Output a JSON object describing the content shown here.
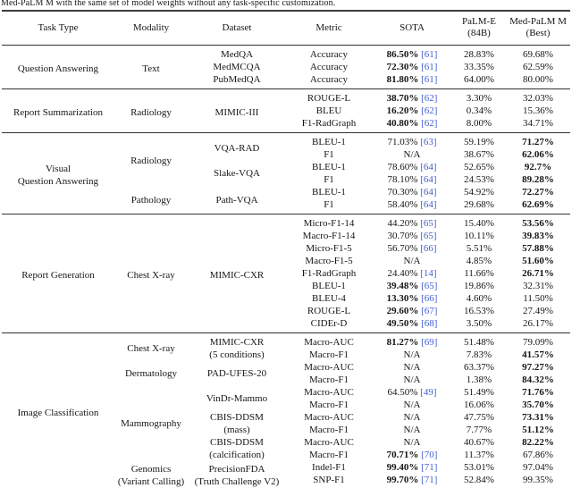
{
  "caption": "Med-PaLM M with the same set of model weights without any task-specific customization.",
  "citation_color": "#4560cf",
  "table": {
    "columns": [
      "Task Type",
      "Modality",
      "Dataset",
      "Metric",
      "SOTA",
      "PaLM-E\n(84B)",
      "Med-PaLM M\n(Best)"
    ],
    "na_label": "N/A",
    "sections": [
      {
        "task": {
          "lines": [
            "Question Answering"
          ]
        },
        "rows": [
          {
            "modality": {
              "lines": [
                "Text"
              ],
              "span": 3
            },
            "dataset": {
              "lines": [
                "MedQA"
              ],
              "span": 1
            },
            "metric": "Accuracy",
            "sota": {
              "value": "86.50%",
              "cite": "[61]",
              "bold": true
            },
            "palm_e": {
              "value": "28.83%"
            },
            "med_palm_m": {
              "value": "69.68%",
              "bold": false
            }
          },
          {
            "dataset": {
              "lines": [
                "MedMCQA"
              ],
              "span": 1
            },
            "metric": "Accuracy",
            "sota": {
              "value": "72.30%",
              "cite": "[61]",
              "bold": true
            },
            "palm_e": {
              "value": "33.35%"
            },
            "med_palm_m": {
              "value": "62.59%",
              "bold": false
            }
          },
          {
            "dataset": {
              "lines": [
                "PubMedQA"
              ],
              "span": 1
            },
            "metric": "Accuracy",
            "sota": {
              "value": "81.80%",
              "cite": "[61]",
              "bold": true
            },
            "palm_e": {
              "value": "64.00%"
            },
            "med_palm_m": {
              "value": "80.00%",
              "bold": false
            }
          }
        ]
      },
      {
        "task": {
          "lines": [
            "Report Summarization"
          ]
        },
        "rows": [
          {
            "modality": {
              "lines": [
                "Radiology"
              ],
              "span": 3
            },
            "dataset": {
              "lines": [
                "MIMIC-III"
              ],
              "span": 3
            },
            "metric": "ROUGE-L",
            "sota": {
              "value": "38.70%",
              "cite": "[62]",
              "bold": true
            },
            "palm_e": {
              "value": "3.30%"
            },
            "med_palm_m": {
              "value": "32.03%",
              "bold": false
            }
          },
          {
            "metric": "BLEU",
            "sota": {
              "value": "16.20%",
              "cite": "[62]",
              "bold": true
            },
            "palm_e": {
              "value": "0.34%"
            },
            "med_palm_m": {
              "value": "15.36%",
              "bold": false
            }
          },
          {
            "metric": "F1-RadGraph",
            "sota": {
              "value": "40.80%",
              "cite": "[62]",
              "bold": true
            },
            "palm_e": {
              "value": "8.00%"
            },
            "med_palm_m": {
              "value": "34.71%",
              "bold": false
            }
          }
        ]
      },
      {
        "task": {
          "lines": [
            "Visual",
            "Question Answering"
          ]
        },
        "rows": [
          {
            "modality": {
              "lines": [
                "Radiology"
              ],
              "span": 4
            },
            "dataset": {
              "lines": [
                "VQA-RAD"
              ],
              "span": 2
            },
            "metric": "BLEU-1",
            "sota": {
              "value": "71.03%",
              "cite": "[63]",
              "bold": false
            },
            "palm_e": {
              "value": "59.19%"
            },
            "med_palm_m": {
              "value": "71.27%",
              "bold": true
            }
          },
          {
            "metric": "F1",
            "sota": {
              "value": "N/A"
            },
            "palm_e": {
              "value": "38.67%"
            },
            "med_palm_m": {
              "value": "62.06%",
              "bold": true
            }
          },
          {
            "dataset": {
              "lines": [
                "Slake-VQA"
              ],
              "span": 2
            },
            "metric": "BLEU-1",
            "sota": {
              "value": "78.60%",
              "cite": "[64]",
              "bold": false
            },
            "palm_e": {
              "value": "52.65%"
            },
            "med_palm_m": {
              "value": "92.7%",
              "bold": true
            }
          },
          {
            "metric": "F1",
            "sota": {
              "value": "78.10%",
              "cite": "[64]",
              "bold": false
            },
            "palm_e": {
              "value": "24.53%"
            },
            "med_palm_m": {
              "value": "89.28%",
              "bold": true
            }
          },
          {
            "modality": {
              "lines": [
                "Pathology"
              ],
              "span": 2
            },
            "dataset": {
              "lines": [
                "Path-VQA"
              ],
              "span": 2
            },
            "metric": "BLEU-1",
            "sota": {
              "value": "70.30%",
              "cite": "[64]",
              "bold": false
            },
            "palm_e": {
              "value": "54.92%"
            },
            "med_palm_m": {
              "value": "72.27%",
              "bold": true
            }
          },
          {
            "metric": "F1",
            "sota": {
              "value": "58.40%",
              "cite": "[64]",
              "bold": false
            },
            "palm_e": {
              "value": "29.68%"
            },
            "med_palm_m": {
              "value": "62.69%",
              "bold": true
            }
          }
        ]
      },
      {
        "task": {
          "lines": [
            "Report Generation"
          ]
        },
        "rows": [
          {
            "modality": {
              "lines": [
                "Chest X-ray"
              ],
              "span": 9
            },
            "dataset": {
              "lines": [
                "MIMIC-CXR"
              ],
              "span": 9
            },
            "metric": "Micro-F1-14",
            "sota": {
              "value": "44.20%",
              "cite": "[65]",
              "bold": false
            },
            "palm_e": {
              "value": "15.40%"
            },
            "med_palm_m": {
              "value": "53.56%",
              "bold": true
            }
          },
          {
            "metric": "Macro-F1-14",
            "sota": {
              "value": "30.70%",
              "cite": "[65]",
              "bold": false
            },
            "palm_e": {
              "value": "10.11%"
            },
            "med_palm_m": {
              "value": "39.83%",
              "bold": true
            }
          },
          {
            "metric": "Micro-F1-5",
            "sota": {
              "value": "56.70%",
              "cite": "[66]",
              "bold": false
            },
            "palm_e": {
              "value": "5.51%"
            },
            "med_palm_m": {
              "value": "57.88%",
              "bold": true
            }
          },
          {
            "metric": "Macro-F1-5",
            "sota": {
              "value": "N/A"
            },
            "palm_e": {
              "value": "4.85%"
            },
            "med_palm_m": {
              "value": "51.60%",
              "bold": true
            }
          },
          {
            "metric": "F1-RadGraph",
            "sota": {
              "value": "24.40%",
              "cite": "[14]",
              "bold": false
            },
            "palm_e": {
              "value": "11.66%"
            },
            "med_palm_m": {
              "value": "26.71%",
              "bold": true
            }
          },
          {
            "metric": "BLEU-1",
            "sota": {
              "value": "39.48%",
              "cite": "[65]",
              "bold": true
            },
            "palm_e": {
              "value": "19.86%"
            },
            "med_palm_m": {
              "value": "32.31%",
              "bold": false
            }
          },
          {
            "metric": "BLEU-4",
            "sota": {
              "value": "13.30%",
              "cite": "[66]",
              "bold": true
            },
            "palm_e": {
              "value": "4.60%"
            },
            "med_palm_m": {
              "value": "11.50%",
              "bold": false
            }
          },
          {
            "metric": "ROUGE-L",
            "sota": {
              "value": "29.60%",
              "cite": "[67]",
              "bold": true
            },
            "palm_e": {
              "value": "16.53%"
            },
            "med_palm_m": {
              "value": "27.49%",
              "bold": false
            }
          },
          {
            "metric": "CIDEr-D",
            "sota": {
              "value": "49.50%",
              "cite": "[68]",
              "bold": true
            },
            "palm_e": {
              "value": "3.50%"
            },
            "med_palm_m": {
              "value": "26.17%",
              "bold": false
            }
          }
        ]
      },
      {
        "task": {
          "lines": [
            "Image Classification"
          ]
        },
        "rows": [
          {
            "modality": {
              "lines": [
                "Chest X-ray"
              ],
              "span": 2
            },
            "dataset": {
              "lines": [
                "MIMIC-CXR",
                "(5 conditions)"
              ],
              "span": 2
            },
            "metric": "Macro-AUC",
            "sota": {
              "value": "81.27%",
              "cite": "[69]",
              "bold": true
            },
            "palm_e": {
              "value": "51.48%"
            },
            "med_palm_m": {
              "value": "79.09%",
              "bold": false
            }
          },
          {
            "metric": "Macro-F1",
            "sota": {
              "value": "N/A"
            },
            "palm_e": {
              "value": "7.83%"
            },
            "med_palm_m": {
              "value": "41.57%",
              "bold": true
            }
          },
          {
            "modality": {
              "lines": [
                "Dermatology"
              ],
              "span": 2
            },
            "dataset": {
              "lines": [
                "PAD-UFES-20"
              ],
              "span": 2
            },
            "metric": "Macro-AUC",
            "sota": {
              "value": "N/A"
            },
            "palm_e": {
              "value": "63.37%"
            },
            "med_palm_m": {
              "value": "97.27%",
              "bold": true
            }
          },
          {
            "metric": "Macro-F1",
            "sota": {
              "value": "N/A"
            },
            "palm_e": {
              "value": "1.38%"
            },
            "med_palm_m": {
              "value": "84.32%",
              "bold": true
            }
          },
          {
            "modality": {
              "lines": [
                "Mammography"
              ],
              "span": 6
            },
            "dataset": {
              "lines": [
                "VinDr-Mammo"
              ],
              "span": 2
            },
            "metric": "Macro-AUC",
            "sota": {
              "value": "64.50%",
              "cite": "[49]",
              "bold": false
            },
            "palm_e": {
              "value": "51.49%"
            },
            "med_palm_m": {
              "value": "71.76%",
              "bold": true
            }
          },
          {
            "metric": "Macro-F1",
            "sota": {
              "value": "N/A"
            },
            "palm_e": {
              "value": "16.06%"
            },
            "med_palm_m": {
              "value": "35.70%",
              "bold": true
            }
          },
          {
            "dataset": {
              "lines": [
                "CBIS-DDSM",
                "(mass)"
              ],
              "span": 2
            },
            "metric": "Macro-AUC",
            "sota": {
              "value": "N/A"
            },
            "palm_e": {
              "value": "47.75%"
            },
            "med_palm_m": {
              "value": "73.31%",
              "bold": true
            }
          },
          {
            "metric": "Macro-F1",
            "sota": {
              "value": "N/A"
            },
            "palm_e": {
              "value": "7.77%"
            },
            "med_palm_m": {
              "value": "51.12%",
              "bold": true
            }
          },
          {
            "dataset": {
              "lines": [
                "CBIS-DDSM",
                "(calcification)"
              ],
              "span": 2
            },
            "metric": "Macro-AUC",
            "sota": {
              "value": "N/A"
            },
            "palm_e": {
              "value": "40.67%"
            },
            "med_palm_m": {
              "value": "82.22%",
              "bold": true
            }
          },
          {
            "metric": "Macro-F1",
            "sota": {
              "value": "70.71%",
              "cite": "[70]",
              "bold": true
            },
            "palm_e": {
              "value": "11.37%"
            },
            "med_palm_m": {
              "value": "67.86%",
              "bold": false
            }
          },
          {
            "modality": {
              "lines": [
                "Genomics",
                "(Variant Calling)"
              ],
              "span": 2
            },
            "dataset": {
              "lines": [
                "PrecisionFDA",
                "(Truth Challenge V2)"
              ],
              "span": 2
            },
            "metric": "Indel-F1",
            "sota": {
              "value": "99.40%",
              "cite": "[71]",
              "bold": true
            },
            "palm_e": {
              "value": "53.01%"
            },
            "med_palm_m": {
              "value": "97.04%",
              "bold": false
            }
          },
          {
            "metric": "SNP-F1",
            "sota": {
              "value": "99.70%",
              "cite": "[71]",
              "bold": true
            },
            "palm_e": {
              "value": "52.84%"
            },
            "med_palm_m": {
              "value": "99.35%",
              "bold": false
            }
          }
        ]
      }
    ]
  }
}
